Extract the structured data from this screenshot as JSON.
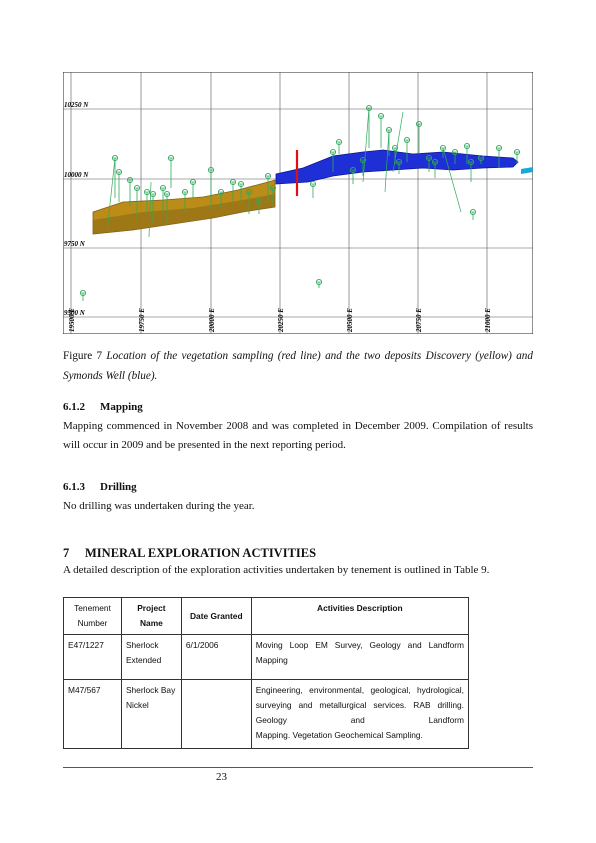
{
  "figure": {
    "northings": [
      "10250 N",
      "10000 N",
      "9750 N",
      "9500 N"
    ],
    "eastings": [
      "19500 E",
      "19750 E",
      "20000 E",
      "20250 E",
      "20500 E",
      "20750 E",
      "21000 E"
    ],
    "colors": {
      "discovery": "#b8860b",
      "symonds_well": "#1f2fd6",
      "sampling_line": "#e01010",
      "drillholes": "#2eaa5a"
    }
  },
  "caption": {
    "lead": "Figure 7 ",
    "text": "Location of the vegetation sampling (red line) and the two deposits Discovery (yellow) and Symonds Well (blue)."
  },
  "sections": {
    "mapping": {
      "number": "6.1.2",
      "title": "Mapping",
      "text": "Mapping commenced in November 2008 and was completed in December 2009. Compilation of results will occur in 2009 and be presented in the next reporting period."
    },
    "drilling": {
      "number": "6.1.3",
      "title": "Drilling",
      "text": "No drilling was undertaken during the year."
    },
    "mineral": {
      "number": "7",
      "title": "MINERAL EXPLORATION ACTIVITIES",
      "text": "A detailed description of the exploration activities undertaken by tenement is outlined in Table 9."
    }
  },
  "table": {
    "headers": {
      "tenement": "Tenement Number",
      "project": "Project Name",
      "date": "Date Granted",
      "activities": "Activities Description"
    },
    "rows": [
      {
        "tenement": "E47/1227",
        "project": "Sherlock Extended",
        "date": "6/1/2006",
        "activities_a": "Moving Loop EM Survey, Geology and Landform",
        "activities_b": "Mapping"
      },
      {
        "tenement": "M47/567",
        "project": "Sherlock Bay Nickel",
        "date": "",
        "activities_a": "Engineering, environmental, geological, hydrological, surveying and metallurgical services. RAB drilling. Geology and Landform",
        "activities_b": "Mapping. Vegetation Geochemical Sampling."
      }
    ]
  },
  "footer": {
    "page_number": "23"
  }
}
